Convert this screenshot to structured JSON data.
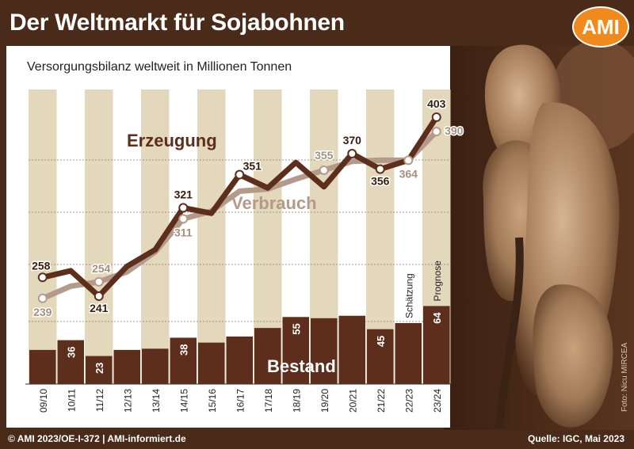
{
  "header": {
    "title": "Der Weltmarkt für Sojabohnen",
    "logo_text": "AMI"
  },
  "subtitle": "Versorgungsbilanz weltweit in Millionen Tonnen",
  "footer": {
    "left": "© AMI 2023/OE-I-372 | AMI-informiert.de",
    "right": "Quelle: IGC, Mai 2023"
  },
  "photo_credit": "Foto: Nicu MIRCEA",
  "colors": {
    "brown": "#5c2e1b",
    "beige": "#e3d8bb",
    "light_brown": "#b49a8a",
    "background": "#4a2a18",
    "accent": "#f08a1c"
  },
  "chart_data": {
    "type": "bar+line",
    "categories": [
      "09/10",
      "10/11",
      "11/12",
      "12/13",
      "13/14",
      "14/15",
      "15/16",
      "16/17",
      "17/18",
      "18/19",
      "19/20",
      "20/21",
      "21/22",
      "22/23",
      "23/24"
    ],
    "annotations": {
      "22/23": "Schätzung",
      "23/24": "Prognose"
    },
    "series": [
      {
        "name": "Erzeugung",
        "type": "line",
        "color": "#5c2e1b",
        "values": [
          258,
          264,
          241,
          268,
          283,
          321,
          316,
          351,
          339,
          362,
          340,
          370,
          356,
          364,
          403
        ],
        "labels": {
          "09/10": "258",
          "11/12": "241",
          "14/15": "321",
          "16/17": "351",
          "20/21": "370",
          "21/22": "356",
          "23/24": "403"
        }
      },
      {
        "name": "Verbrauch",
        "type": "line",
        "color": "#b49a8a",
        "values": [
          239,
          250,
          254,
          263,
          281,
          311,
          318,
          336,
          338,
          347,
          355,
          363,
          364,
          364,
          390
        ],
        "labels": {
          "09/10": "239",
          "11/12": "254",
          "14/15": "311",
          "19/20": "355",
          "22/23": "364",
          "23/24": "390"
        }
      },
      {
        "name": "Bestand",
        "type": "bar",
        "color": "#5c2e1b",
        "values": [
          28,
          36,
          23,
          28,
          29,
          38,
          34,
          39,
          46,
          55,
          54,
          56,
          45,
          50,
          64
        ],
        "labels": {
          "10/11": "36",
          "11/12": "23",
          "14/15": "38",
          "18/19": "55",
          "21/22": "45",
          "23/24": "64"
        }
      }
    ]
  }
}
